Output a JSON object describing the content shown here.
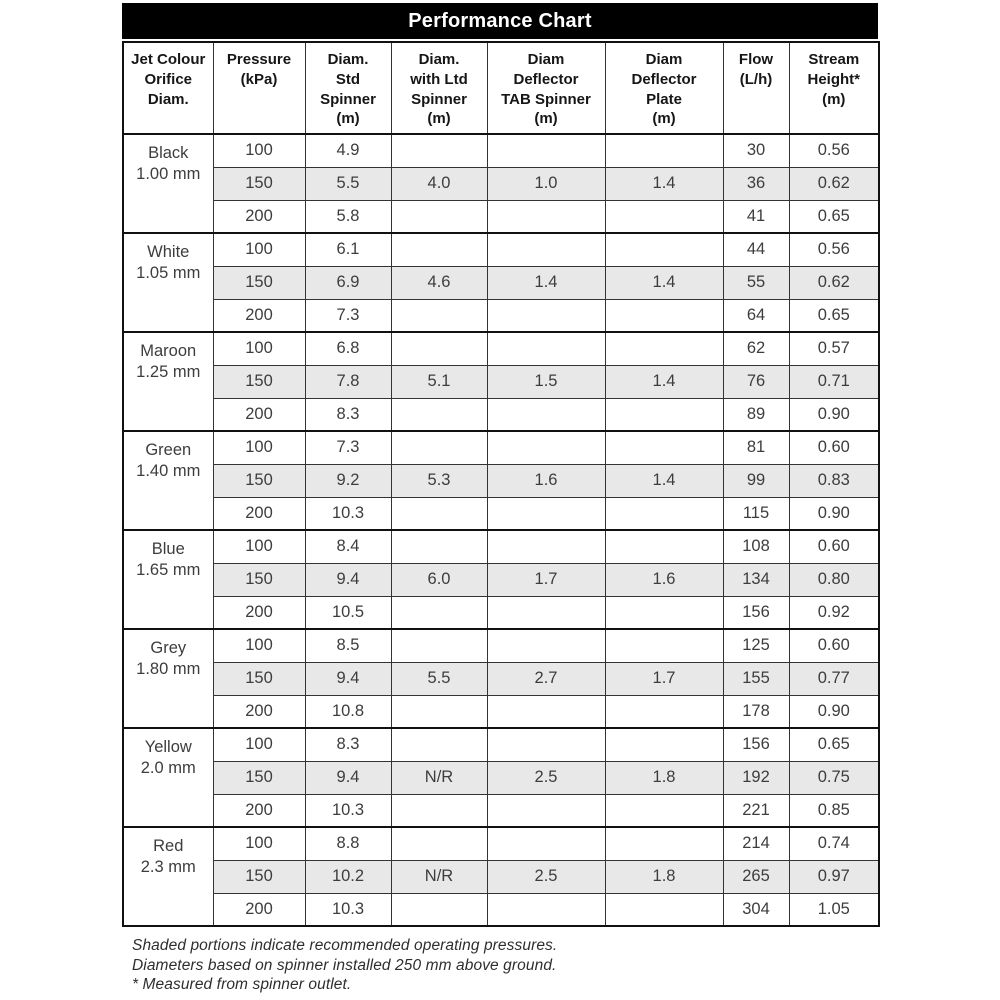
{
  "title": "Performance Chart",
  "colors": {
    "title_bg": "#000000",
    "title_text": "#ffffff",
    "shaded_row": "#e8e8e8",
    "border": "#333333",
    "text": "#3d3d3d"
  },
  "table": {
    "columns": [
      {
        "id": "jet-colour",
        "label": "Jet Colour\nOrifice\nDiam."
      },
      {
        "id": "pressure",
        "label": "Pressure\n(kPa)"
      },
      {
        "id": "diam-std-spinner",
        "label": "Diam.\nStd\nSpinner\n(m)"
      },
      {
        "id": "diam-ltd-spinner",
        "label": "Diam.\nwith Ltd\nSpinner\n(m)"
      },
      {
        "id": "diam-deflector-tab",
        "label": "Diam\nDeflector\nTAB Spinner\n(m)"
      },
      {
        "id": "diam-deflector-plate",
        "label": "Diam\nDeflector\nPlate\n(m)"
      },
      {
        "id": "flow",
        "label": "Flow\n(L/h)"
      },
      {
        "id": "stream-height",
        "label": "Stream\nHeight*\n(m)"
      }
    ],
    "groups": [
      {
        "jet": "Black",
        "orifice": "1.00 mm",
        "rows": [
          {
            "shaded": false,
            "cells": [
              "100",
              "4.9",
              "",
              "",
              "",
              "30",
              "0.56"
            ]
          },
          {
            "shaded": true,
            "cells": [
              "150",
              "5.5",
              "4.0",
              "1.0",
              "1.4",
              "36",
              "0.62"
            ]
          },
          {
            "shaded": false,
            "cells": [
              "200",
              "5.8",
              "",
              "",
              "",
              "41",
              "0.65"
            ]
          }
        ]
      },
      {
        "jet": "White",
        "orifice": "1.05 mm",
        "rows": [
          {
            "shaded": false,
            "cells": [
              "100",
              "6.1",
              "",
              "",
              "",
              "44",
              "0.56"
            ]
          },
          {
            "shaded": true,
            "cells": [
              "150",
              "6.9",
              "4.6",
              "1.4",
              "1.4",
              "55",
              "0.62"
            ]
          },
          {
            "shaded": false,
            "cells": [
              "200",
              "7.3",
              "",
              "",
              "",
              "64",
              "0.65"
            ]
          }
        ]
      },
      {
        "jet": "Maroon",
        "orifice": "1.25 mm",
        "rows": [
          {
            "shaded": false,
            "cells": [
              "100",
              "6.8",
              "",
              "",
              "",
              "62",
              "0.57"
            ]
          },
          {
            "shaded": true,
            "cells": [
              "150",
              "7.8",
              "5.1",
              "1.5",
              "1.4",
              "76",
              "0.71"
            ]
          },
          {
            "shaded": false,
            "cells": [
              "200",
              "8.3",
              "",
              "",
              "",
              "89",
              "0.90"
            ]
          }
        ]
      },
      {
        "jet": "Green",
        "orifice": "1.40 mm",
        "rows": [
          {
            "shaded": false,
            "cells": [
              "100",
              "7.3",
              "",
              "",
              "",
              "81",
              "0.60"
            ]
          },
          {
            "shaded": true,
            "cells": [
              "150",
              "9.2",
              "5.3",
              "1.6",
              "1.4",
              "99",
              "0.83"
            ]
          },
          {
            "shaded": false,
            "cells": [
              "200",
              "10.3",
              "",
              "",
              "",
              "115",
              "0.90"
            ]
          }
        ]
      },
      {
        "jet": "Blue",
        "orifice": "1.65 mm",
        "rows": [
          {
            "shaded": false,
            "cells": [
              "100",
              "8.4",
              "",
              "",
              "",
              "108",
              "0.60"
            ]
          },
          {
            "shaded": true,
            "cells": [
              "150",
              "9.4",
              "6.0",
              "1.7",
              "1.6",
              "134",
              "0.80"
            ]
          },
          {
            "shaded": false,
            "cells": [
              "200",
              "10.5",
              "",
              "",
              "",
              "156",
              "0.92"
            ]
          }
        ]
      },
      {
        "jet": "Grey",
        "orifice": "1.80 mm",
        "rows": [
          {
            "shaded": false,
            "cells": [
              "100",
              "8.5",
              "",
              "",
              "",
              "125",
              "0.60"
            ]
          },
          {
            "shaded": true,
            "cells": [
              "150",
              "9.4",
              "5.5",
              "2.7",
              "1.7",
              "155",
              "0.77"
            ]
          },
          {
            "shaded": false,
            "cells": [
              "200",
              "10.8",
              "",
              "",
              "",
              "178",
              "0.90"
            ]
          }
        ]
      },
      {
        "jet": "Yellow",
        "orifice": "2.0 mm",
        "rows": [
          {
            "shaded": false,
            "cells": [
              "100",
              "8.3",
              "",
              "",
              "",
              "156",
              "0.65"
            ]
          },
          {
            "shaded": true,
            "cells": [
              "150",
              "9.4",
              "N/R",
              "2.5",
              "1.8",
              "192",
              "0.75"
            ]
          },
          {
            "shaded": false,
            "cells": [
              "200",
              "10.3",
              "",
              "",
              "",
              "221",
              "0.85"
            ]
          }
        ]
      },
      {
        "jet": "Red",
        "orifice": "2.3 mm",
        "rows": [
          {
            "shaded": false,
            "cells": [
              "100",
              "8.8",
              "",
              "",
              "",
              "214",
              "0.74"
            ]
          },
          {
            "shaded": true,
            "cells": [
              "150",
              "10.2",
              "N/R",
              "2.5",
              "1.8",
              "265",
              "0.97"
            ]
          },
          {
            "shaded": false,
            "cells": [
              "200",
              "10.3",
              "",
              "",
              "",
              "304",
              "1.05"
            ]
          }
        ]
      }
    ]
  },
  "notes": [
    "Shaded portions indicate recommended operating pressures.",
    "Diameters based on spinner installed 250 mm above ground.",
    "* Measured from spinner outlet."
  ]
}
